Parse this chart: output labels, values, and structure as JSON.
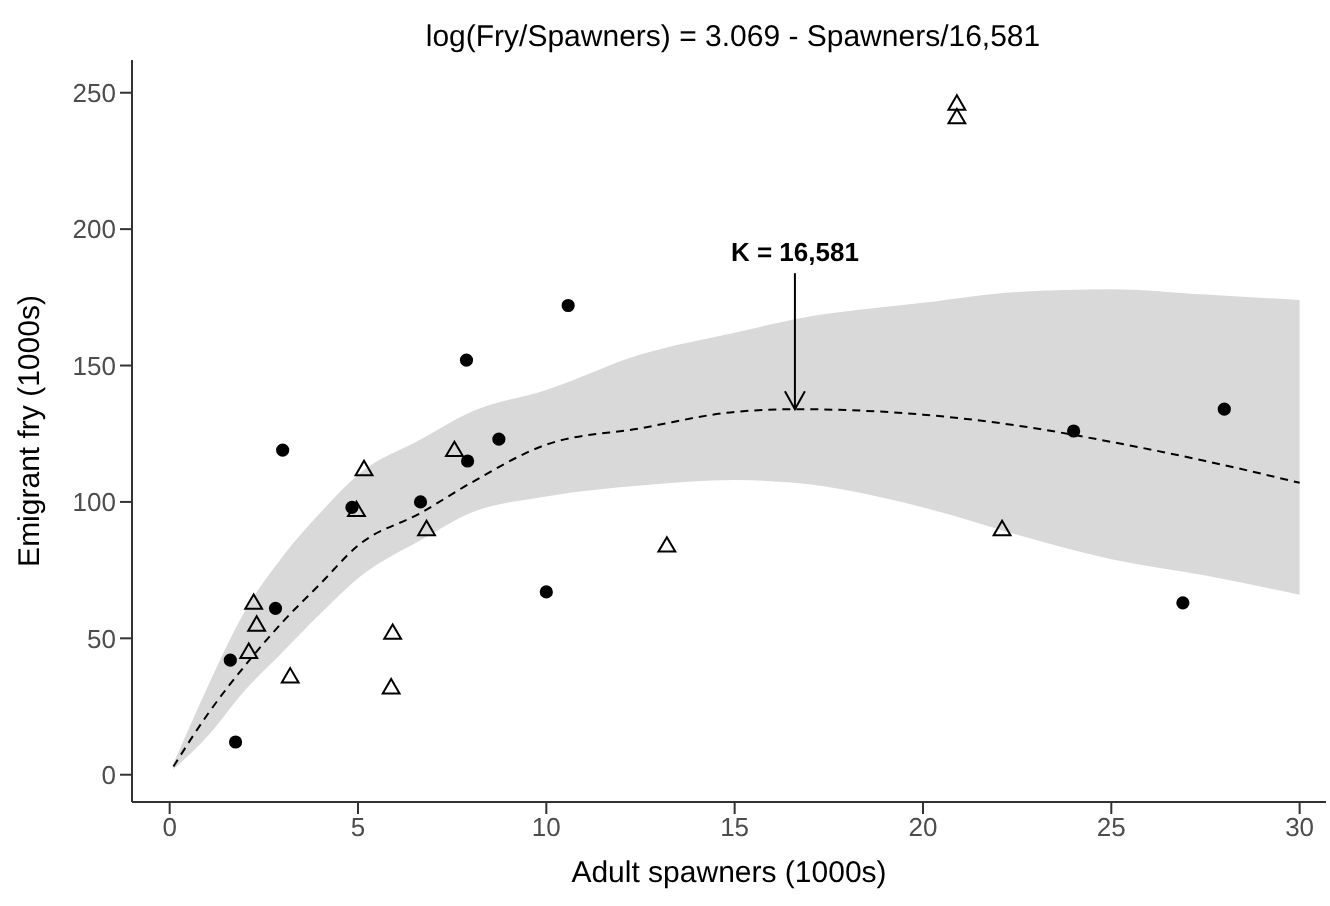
{
  "chart_data": {
    "type": "scatter",
    "title": "log(Fry/Spawners) = 3.069 - Spawners/16,581",
    "xlabel": "Adult spawners (1000s)",
    "ylabel": "Emigrant fry (1000s)",
    "xlim": [
      -1,
      30.7
    ],
    "ylim": [
      -10,
      262
    ],
    "xticks": [
      0,
      5,
      10,
      15,
      20,
      25,
      30
    ],
    "yticks": [
      0,
      50,
      100,
      150,
      200,
      250
    ],
    "annotations": [
      {
        "text": "K = 16,581",
        "x": 16.6,
        "y": 134
      }
    ],
    "series": [
      {
        "type": "line",
        "line_style": "dashed",
        "marker": "none",
        "color": "#000000",
        "x": [
          0.1,
          1,
          2,
          3,
          4,
          5,
          6.67,
          8,
          10,
          12.5,
          15,
          16.6,
          20,
          22.5,
          25,
          27.5,
          30
        ],
        "values": [
          3,
          22,
          40,
          56,
          70,
          84,
          96,
          107,
          121,
          127,
          133,
          134,
          132,
          128,
          122,
          115,
          107
        ],
        "lower": [
          2,
          14,
          31,
          45,
          59,
          72,
          86,
          96,
          102,
          106,
          108,
          107,
          98,
          88,
          79,
          73,
          66
        ],
        "upper": [
          4,
          32,
          60,
          80,
          96,
          110,
          123,
          133,
          141,
          154,
          162,
          167,
          173,
          177,
          178,
          176,
          174
        ]
      },
      {
        "marker": "circle",
        "color": "#000000",
        "x": [
          1.61,
          1.75,
          2.81,
          3.0,
          4.84,
          6.66,
          7.88,
          7.91,
          8.74,
          10.58,
          10.0,
          24.0,
          28.0,
          26.9
        ],
        "values": [
          42,
          12,
          61,
          119,
          98,
          100,
          152,
          115,
          123,
          172,
          67,
          126,
          134,
          63
        ]
      },
      {
        "marker": "triangle",
        "color": "#000000",
        "x": [
          2.23,
          2.31,
          2.1,
          3.2,
          5.16,
          4.96,
          5.92,
          5.88,
          7.56,
          6.82,
          13.2,
          20.9,
          20.9,
          22.1
        ],
        "values": [
          63,
          55,
          45,
          36,
          112,
          97,
          52,
          32,
          119,
          90,
          84,
          246,
          241,
          90
        ]
      }
    ]
  }
}
